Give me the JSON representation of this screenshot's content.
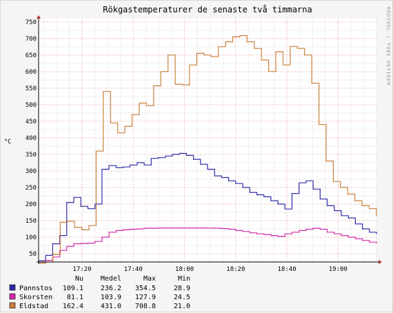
{
  "chart_data": {
    "type": "line",
    "title": "Rökgastemperaturer de senaste två timmarna",
    "ylabel": "°C",
    "side_label": "RRDTOOL / TOBI OETIKER",
    "ylim": [
      25,
      760
    ],
    "yticks": [
      50,
      100,
      150,
      200,
      250,
      300,
      350,
      400,
      450,
      500,
      550,
      600,
      650,
      700,
      750
    ],
    "xlim": [
      "17:03",
      "19:15"
    ],
    "xticks": [
      "17:20",
      "17:40",
      "18:00",
      "18:20",
      "18:40",
      "19:00"
    ],
    "grid": true,
    "legend_headers": [
      "Nu",
      "Medel",
      "Max",
      "Min"
    ],
    "series": [
      {
        "name": "Pannstos",
        "color": "#2b2ba8",
        "stats": [
          "109.1",
          "236.2",
          "354.5",
          "28.9"
        ],
        "values": [
          28.9,
          45,
          80,
          105,
          205,
          220,
          193,
          186,
          200,
          305,
          316,
          310,
          312,
          318,
          325,
          318,
          338,
          340,
          345,
          350,
          353,
          347,
          335,
          320,
          305,
          285,
          280,
          270,
          262,
          250,
          235,
          228,
          222,
          210,
          200,
          185,
          232,
          264,
          270,
          245,
          215,
          195,
          180,
          165,
          158,
          140,
          125,
          115,
          109.1
        ]
      },
      {
        "name": "Skorsten",
        "color": "#d428a8",
        "stats": [
          "81.1",
          "103.9",
          "127.9",
          "24.5"
        ],
        "values": [
          24.5,
          30,
          40,
          60,
          72,
          80,
          81,
          82,
          87,
          100,
          115,
          120,
          122,
          124,
          125,
          127,
          127,
          127.9,
          127.9,
          127.9,
          127.9,
          127.9,
          127.9,
          127.9,
          127.5,
          127,
          126,
          124,
          120,
          117,
          113,
          110,
          108,
          105,
          102,
          110,
          115,
          120,
          124,
          127,
          124,
          115,
          110,
          105,
          100,
          95,
          90,
          85,
          81.1
        ]
      },
      {
        "name": "Eldstad",
        "color": "#c8803c",
        "stats": [
          "162.4",
          "431.0",
          "708.8",
          "21.0"
        ],
        "values": [
          21,
          25,
          48,
          145,
          148,
          130,
          122,
          135,
          360,
          540,
          445,
          415,
          435,
          470,
          505,
          497,
          557,
          600,
          650,
          562,
          560,
          620,
          655,
          650,
          645,
          675,
          690,
          705,
          708.8,
          690,
          670,
          635,
          600,
          660,
          620,
          676,
          670,
          650,
          565,
          440,
          330,
          268,
          250,
          230,
          210,
          195,
          186,
          162.4
        ]
      }
    ]
  }
}
